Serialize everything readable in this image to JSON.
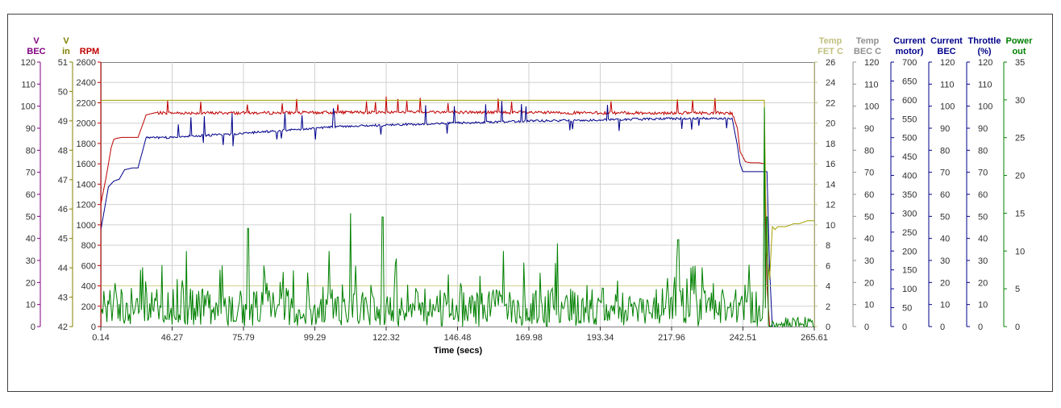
{
  "chart_data": {
    "type": "line",
    "xlabel": "Time (secs)",
    "x_ticks": [
      "0.14",
      "46.27",
      "75.79",
      "99.29",
      "122.32",
      "146.48",
      "169.98",
      "193.34",
      "217.96",
      "242.51",
      "265.61"
    ],
    "axes": [
      {
        "id": "vbec",
        "label": [
          "V",
          "BEC"
        ],
        "color": "#800080",
        "min": 0,
        "max": 120,
        "ticks": [
          0,
          10,
          20,
          30,
          40,
          50,
          60,
          70,
          80,
          90,
          100,
          110,
          120
        ]
      },
      {
        "id": "vin",
        "label": [
          "V",
          "in"
        ],
        "color": "#808000",
        "min": 42,
        "max": 51,
        "ticks": [
          42,
          43,
          44,
          45,
          46,
          47,
          48,
          49,
          50,
          51
        ]
      },
      {
        "id": "rpm",
        "label": [
          "RPM"
        ],
        "color": "#c00000",
        "min": 0,
        "max": 2600,
        "ticks": [
          0,
          200,
          400,
          600,
          800,
          1000,
          1200,
          1400,
          1600,
          1800,
          2000,
          2200,
          2400,
          2600
        ]
      },
      {
        "id": "tfet",
        "label": [
          "Temp",
          "FET C"
        ],
        "color": "#c0c080",
        "min": 0,
        "max": 26,
        "ticks": [
          0,
          2,
          4,
          6,
          8,
          10,
          12,
          14,
          16,
          18,
          20,
          22,
          24,
          26
        ]
      },
      {
        "id": "tbec",
        "label": [
          "Temp",
          "BEC C"
        ],
        "color": "#909090",
        "min": 0,
        "max": 120,
        "ticks": [
          0,
          10,
          20,
          30,
          40,
          50,
          60,
          70,
          80,
          90,
          100,
          110,
          120
        ]
      },
      {
        "id": "imotor",
        "label": [
          "Current",
          "motor)"
        ],
        "color": "#00008b",
        "min": 0,
        "max": 700,
        "ticks": [
          0,
          50,
          100,
          150,
          200,
          250,
          300,
          350,
          400,
          450,
          500,
          550,
          600,
          650,
          700
        ]
      },
      {
        "id": "ibec",
        "label": [
          "Current",
          "BEC"
        ],
        "color": "#00008b",
        "min": 0,
        "max": 120,
        "ticks": [
          0,
          10,
          20,
          30,
          40,
          50,
          60,
          70,
          80,
          90,
          100,
          110,
          120
        ]
      },
      {
        "id": "thr",
        "label": [
          "Throttle",
          "(%)"
        ],
        "color": "#00008b",
        "min": 0,
        "max": 120,
        "ticks": [
          0,
          10,
          20,
          30,
          40,
          50,
          60,
          70,
          80,
          90,
          100,
          110,
          120
        ]
      },
      {
        "id": "pwr",
        "label": [
          "Power",
          "out"
        ],
        "color": "#008000",
        "min": 0,
        "max": 35,
        "ticks": [
          0,
          5,
          10,
          15,
          20,
          25,
          30,
          35
        ]
      }
    ],
    "series": [
      {
        "axis": "rpm",
        "color": "#c00000",
        "x": [
          0.14,
          1,
          2,
          3,
          4,
          5,
          6,
          8,
          10,
          14,
          17,
          20,
          22,
          30,
          60,
          120,
          180,
          235,
          237,
          238,
          240,
          242,
          245,
          247,
          248,
          249
        ],
        "y": [
          1200,
          1320,
          1450,
          1600,
          1760,
          1840,
          1850,
          1860,
          1860,
          1860,
          2080,
          2100,
          2100,
          2100,
          2100,
          2110,
          2100,
          2100,
          1950,
          1720,
          1620,
          1610,
          1610,
          1600,
          400,
          0
        ]
      },
      {
        "axis": "imotor",
        "color": "#00008b",
        "x": [
          0.14,
          1,
          2,
          3,
          5,
          7,
          9,
          12,
          14,
          17,
          20,
          25,
          30,
          40,
          50,
          60,
          70,
          80,
          90,
          100,
          110,
          120,
          130,
          140,
          150,
          160,
          170,
          180,
          190,
          200,
          210,
          220,
          230,
          235,
          237,
          238,
          239,
          240,
          242,
          245,
          247,
          248,
          249,
          250
        ],
        "y": [
          255,
          290,
          330,
          370,
          385,
          390,
          415,
          420,
          420,
          500,
          500,
          500,
          503,
          506,
          510,
          515,
          520,
          525,
          530,
          532,
          534,
          536,
          538,
          540,
          542,
          544,
          545,
          546,
          548,
          549,
          550,
          551,
          551,
          551,
          480,
          430,
          410,
          410,
          410,
          410,
          410,
          410,
          150,
          0
        ]
      },
      {
        "axis": "vin",
        "color": "#a0a000",
        "x": [
          0.14,
          247,
          247.5,
          248,
          249,
          250,
          251,
          252,
          253,
          255,
          258,
          260,
          263,
          265.61
        ],
        "y": [
          49.7,
          49.7,
          46.5,
          44.5,
          43.6,
          45.4,
          45.3,
          45.4,
          45.4,
          45.4,
          45.5,
          45.5,
          45.6,
          45.6
        ]
      },
      {
        "axis": "tfet",
        "color": "#d0d090",
        "x": [
          0.14,
          248,
          250,
          255,
          265.61
        ],
        "y": [
          4,
          4,
          4,
          4,
          4
        ]
      },
      {
        "axis": "pwr",
        "color": "#008000",
        "kind": "noise",
        "x_from": 0.14,
        "x_to": 265.61,
        "base": 2.6,
        "amp": 2.3,
        "spikes": [
          [
            15,
            7.5
          ],
          [
            32,
            10
          ],
          [
            55,
            13
          ],
          [
            85,
            10
          ],
          [
            93,
            15
          ],
          [
            105,
            14.5
          ],
          [
            110,
            9
          ],
          [
            150,
            10
          ],
          [
            170,
            11
          ],
          [
            215,
            11.5
          ],
          [
            247,
            29
          ],
          [
            248,
            14.5
          ]
        ]
      }
    ]
  }
}
